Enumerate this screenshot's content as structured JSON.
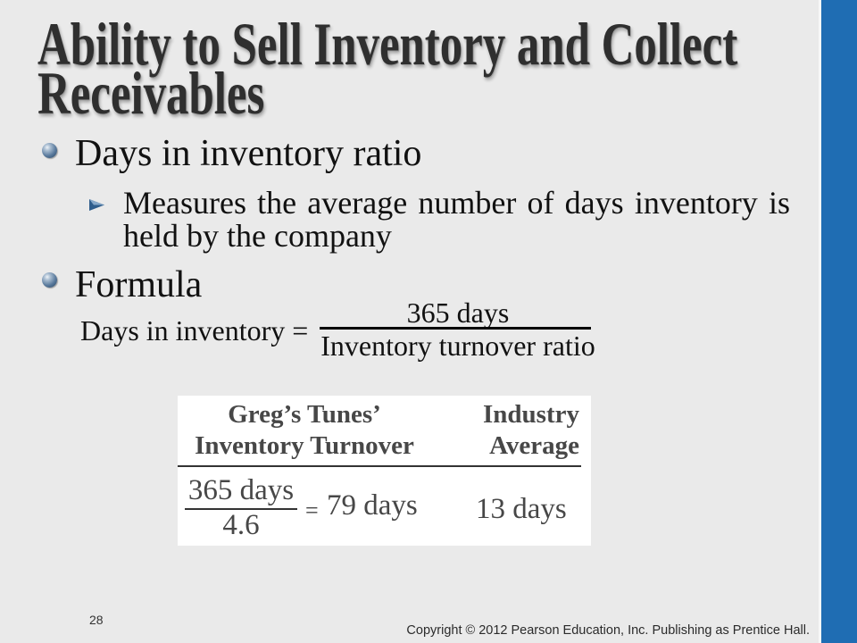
{
  "slide": {
    "title_lines": [
      "Ability to Sell Inventory and Collect",
      "Receivables"
    ],
    "bullets": [
      {
        "text": "Days in inventory ratio",
        "icon": "sphere-bullet-icon",
        "sub_bullets": [
          {
            "text": "Measures the average number of days inventory is held by the company",
            "icon": "arrow-bullet-icon"
          }
        ]
      },
      {
        "text": "Formula",
        "icon": "sphere-bullet-icon"
      }
    ],
    "formula": {
      "lhs": "Days in inventory =",
      "numerator": "365 days",
      "denominator": "Inventory turnover ratio"
    },
    "example_table": {
      "headers": {
        "company": [
          "Greg’s Tunes’",
          "Inventory Turnover"
        ],
        "industry": [
          "Industry",
          "Average"
        ]
      },
      "company_calc": {
        "numerator": "365 days",
        "denominator": "4.6",
        "equals": "=",
        "result": "79 days"
      },
      "industry_value": "13 days"
    },
    "page_number": "28",
    "copyright": "Copyright © 2012 Pearson Education, Inc. Publishing as Prentice Hall."
  },
  "colors": {
    "background": "#eaeaea",
    "accent_bar": "#1f6db3",
    "title_text": "#2f2f2f",
    "bullet": "#56779a"
  }
}
